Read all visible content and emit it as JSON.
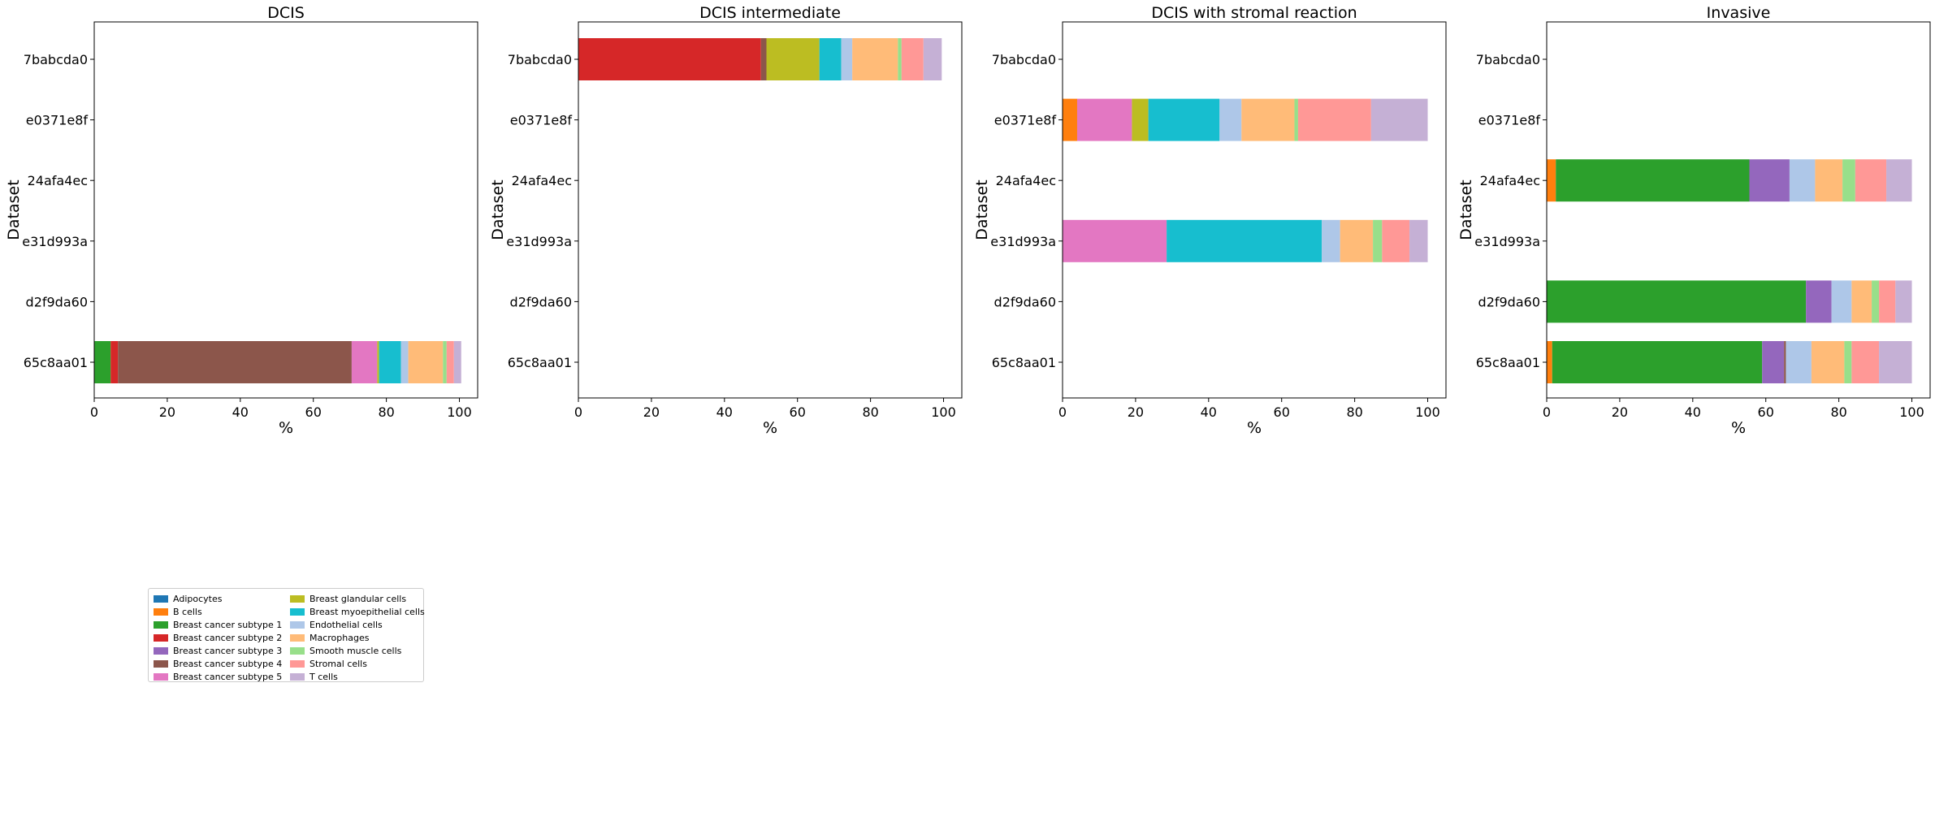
{
  "chart_data": {
    "type": "bar",
    "orientation": "horizontal",
    "stacked": true,
    "categories": [
      "7babcda0",
      "e0371e8f",
      "24afa4ec",
      "e31d993a",
      "d2f9da60",
      "65c8aa01"
    ],
    "xlabel": "%",
    "ylabel": "Dataset",
    "xlim": [
      0,
      105
    ],
    "xticks": [
      "0",
      "20",
      "40",
      "60",
      "80",
      "100"
    ],
    "legend_position": "lower-left",
    "cell_types": [
      {
        "name": "Adipocytes",
        "color": "#1f77b4"
      },
      {
        "name": "B cells",
        "color": "#ff7f0e"
      },
      {
        "name": "Breast cancer subtype 1",
        "color": "#2ca02c"
      },
      {
        "name": "Breast cancer subtype 2",
        "color": "#d62728"
      },
      {
        "name": "Breast cancer subtype 3",
        "color": "#9467bd"
      },
      {
        "name": "Breast cancer subtype 4",
        "color": "#8c564b"
      },
      {
        "name": "Breast cancer subtype 5",
        "color": "#e377c2"
      },
      {
        "name": "Breast glandular cells",
        "color": "#bcbd22"
      },
      {
        "name": "Breast myoepithelial cells",
        "color": "#17becf"
      },
      {
        "name": "Endothelial cells",
        "color": "#aec7e8"
      },
      {
        "name": "Macrophages",
        "color": "#ffbb78"
      },
      {
        "name": "Smooth muscle cells",
        "color": "#98df8a"
      },
      {
        "name": "Stromal cells",
        "color": "#ff9896"
      },
      {
        "name": "T cells",
        "color": "#c5b0d5"
      }
    ],
    "panels": [
      {
        "title": "DCIS",
        "bars": [
          {
            "dataset": "65c8aa01",
            "values": [
              0,
              0,
              4.5,
              2.0,
              0,
              64.0,
              7.0,
              0.5,
              6.0,
              2.0,
              9.5,
              1.0,
              2.0,
              2.0
            ]
          }
        ]
      },
      {
        "title": "DCIS intermediate",
        "bars": [
          {
            "dataset": "7babcda0",
            "values": [
              0,
              0,
              0,
              50.0,
              0,
              1.5,
              0,
              14.5,
              6.0,
              3.0,
              12.5,
              1.0,
              6.0,
              5.0
            ]
          }
        ]
      },
      {
        "title": "DCIS with stromal reaction",
        "bars": [
          {
            "dataset": "e0371e8f",
            "values": [
              0,
              4.0,
              0,
              0,
              0,
              0,
              15.0,
              4.5,
              19.5,
              6.0,
              14.5,
              1.0,
              20.0,
              15.5
            ]
          },
          {
            "dataset": "e31d993a",
            "values": [
              0,
              0,
              0,
              0,
              0,
              0,
              28.5,
              0,
              42.5,
              5.0,
              9.0,
              2.5,
              7.5,
              5.0
            ]
          }
        ]
      },
      {
        "title": "Invasive",
        "bars": [
          {
            "dataset": "24afa4ec",
            "values": [
              0,
              2.5,
              53.0,
              0,
              11.0,
              0,
              0,
              0,
              0,
              7.0,
              7.5,
              3.5,
              8.5,
              7.0
            ]
          },
          {
            "dataset": "d2f9da60",
            "values": [
              0,
              0,
              71.0,
              0,
              7.0,
              0,
              0,
              0,
              0,
              5.5,
              5.5,
              2.0,
              4.5,
              4.5
            ]
          },
          {
            "dataset": "65c8aa01",
            "values": [
              0,
              1.5,
              57.5,
              0,
              6.0,
              0.5,
              0,
              0,
              0,
              7.0,
              9.0,
              2.0,
              7.5,
              9.0
            ]
          }
        ]
      }
    ]
  }
}
